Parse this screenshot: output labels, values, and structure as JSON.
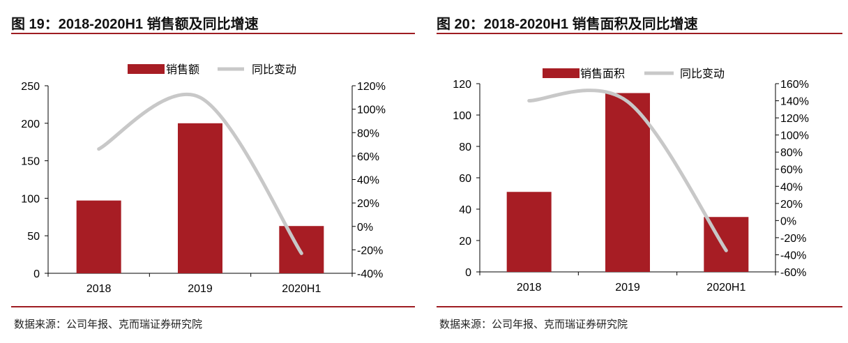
{
  "colors": {
    "bar": "#a71d24",
    "line": "#c8c8c8",
    "rule": "#9e1c22",
    "axis": "#000000"
  },
  "chart_data": [
    {
      "type": "bar",
      "title": "图 19：2018-2020H1 销售额及同比增速",
      "source": "数据来源：公司年报、克而瑞证券研究院",
      "categories": [
        "2018",
        "2019",
        "2020H1"
      ],
      "series": [
        {
          "name": "销售额",
          "type": "bar",
          "axis": "left",
          "values": [
            97,
            200,
            63
          ]
        },
        {
          "name": "同比变动",
          "type": "line",
          "axis": "right",
          "values": [
            66,
            110,
            -23
          ]
        }
      ],
      "ylim": [
        0,
        250
      ],
      "yticks": [
        "0",
        "50",
        "100",
        "150",
        "200",
        "250"
      ],
      "y2lim": [
        -40,
        120
      ],
      "y2ticks": [
        "-40%",
        "-20%",
        "0%",
        "20%",
        "40%",
        "60%",
        "80%",
        "100%",
        "120%"
      ],
      "legend": "top-center",
      "grid": false
    },
    {
      "type": "bar",
      "title": "图 20：2018-2020H1 销售面积及同比增速",
      "source": "数据来源：公司年报、克而瑞证券研究院",
      "categories": [
        "2018",
        "2019",
        "2020H1"
      ],
      "series": [
        {
          "name": "销售面积",
          "type": "bar",
          "axis": "left",
          "values": [
            51,
            114,
            35
          ]
        },
        {
          "name": "同比变动",
          "type": "line",
          "axis": "right",
          "values": [
            140,
            139,
            -35
          ]
        }
      ],
      "ylim": [
        0,
        120
      ],
      "yticks": [
        "0",
        "20",
        "40",
        "60",
        "80",
        "100",
        "120"
      ],
      "y2lim": [
        -60,
        160
      ],
      "y2ticks": [
        "-60%",
        "-40%",
        "-20%",
        "0%",
        "20%",
        "40%",
        "60%",
        "80%",
        "100%",
        "120%",
        "140%",
        "160%"
      ],
      "legend": "top-center",
      "grid": false
    }
  ]
}
